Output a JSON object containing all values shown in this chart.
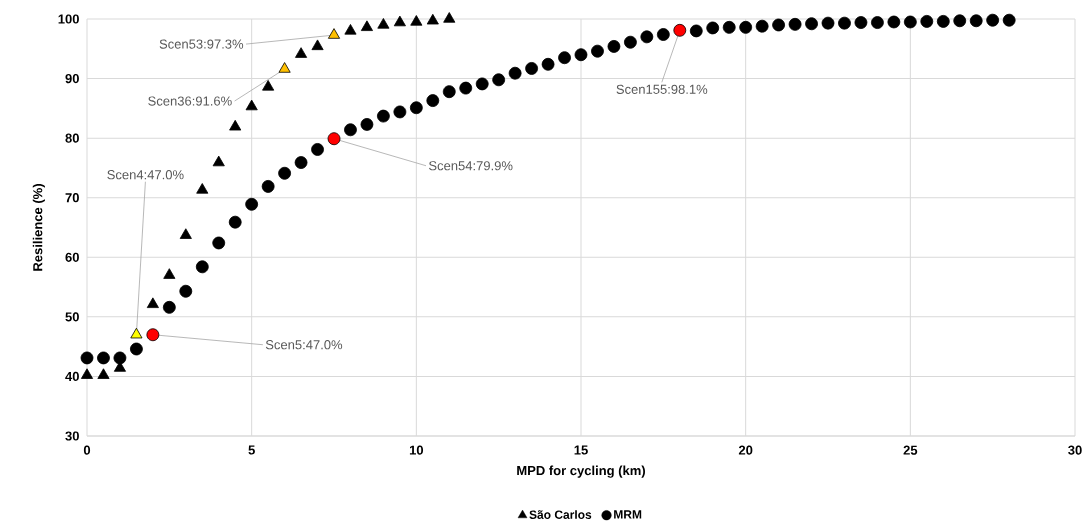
{
  "chart_data": {
    "type": "scatter",
    "xlabel": "MPD for cycling (km)",
    "ylabel": "Resilience (%)",
    "xlim": [
      0,
      30
    ],
    "xticks": [
      0,
      5,
      10,
      15,
      20,
      25,
      30
    ],
    "ylim": [
      30,
      100
    ],
    "yticks": [
      30,
      40,
      50,
      60,
      70,
      80,
      90,
      100
    ],
    "grid": true,
    "legend": "bottom",
    "series": [
      {
        "name": "São Carlos",
        "color": "#000000",
        "marker": "triangle",
        "x": [
          0,
          0.5,
          1,
          1.5,
          2,
          2.5,
          3,
          3.5,
          4,
          4.5,
          5,
          5.5,
          6,
          6.5,
          7,
          7.5,
          8,
          8.5,
          9,
          9.5,
          10,
          10.5,
          11
        ],
        "values": [
          40.2,
          40.2,
          41.4,
          47.0,
          52.1,
          57.0,
          63.7,
          71.3,
          75.9,
          81.9,
          85.3,
          88.6,
          91.6,
          94.1,
          95.4,
          97.3,
          98.0,
          98.6,
          99.0,
          99.4,
          99.5,
          99.7,
          100.0
        ],
        "colors": [
          "#000000",
          "#000000",
          "#000000",
          "#ffff00",
          "#000000",
          "#000000",
          "#000000",
          "#000000",
          "#000000",
          "#000000",
          "#000000",
          "#000000",
          "#ffc000",
          "#000000",
          "#000000",
          "#ffc000",
          "#000000",
          "#000000",
          "#000000",
          "#000000",
          "#000000",
          "#000000",
          "#000000"
        ]
      },
      {
        "name": "MRM",
        "color": "#000000",
        "marker": "circle",
        "x": [
          0,
          0.5,
          1,
          1.5,
          2,
          2.5,
          3,
          3.5,
          4,
          4.5,
          5,
          5.5,
          6,
          6.5,
          7,
          7.5,
          8,
          8.5,
          9,
          9.5,
          10,
          10.5,
          11,
          11.5,
          12,
          12.5,
          13,
          13.5,
          14,
          14.5,
          15,
          15.5,
          16,
          16.5,
          17,
          17.5,
          18,
          18.5,
          19,
          19.5,
          20,
          20.5,
          21,
          21.5,
          22,
          22.5,
          23,
          23.5,
          24,
          24.5,
          25,
          25.5,
          26,
          26.5,
          27,
          27.5,
          28
        ],
        "values": [
          43.1,
          43.1,
          43.1,
          44.6,
          47.0,
          51.6,
          54.3,
          58.4,
          62.4,
          65.9,
          68.9,
          71.9,
          74.1,
          75.9,
          78.1,
          79.9,
          81.4,
          82.3,
          83.7,
          84.4,
          85.1,
          86.3,
          87.8,
          88.4,
          89.1,
          89.8,
          90.9,
          91.7,
          92.4,
          93.5,
          94.0,
          94.6,
          95.4,
          96.1,
          97.0,
          97.4,
          98.1,
          98.0,
          98.5,
          98.6,
          98.6,
          98.8,
          99.0,
          99.1,
          99.2,
          99.3,
          99.3,
          99.4,
          99.4,
          99.5,
          99.5,
          99.6,
          99.6,
          99.7,
          99.7,
          99.8,
          99.8
        ],
        "colors": [
          "#000000",
          "#000000",
          "#000000",
          "#000000",
          "#ff0000",
          "#000000",
          "#000000",
          "#000000",
          "#000000",
          "#000000",
          "#000000",
          "#000000",
          "#000000",
          "#000000",
          "#000000",
          "#ff0000",
          "#000000",
          "#000000",
          "#000000",
          "#000000",
          "#000000",
          "#000000",
          "#000000",
          "#000000",
          "#000000",
          "#000000",
          "#000000",
          "#000000",
          "#000000",
          "#000000",
          "#000000",
          "#000000",
          "#000000",
          "#000000",
          "#000000",
          "#000000",
          "#ff0000",
          "#000000",
          "#000000",
          "#000000",
          "#000000",
          "#000000",
          "#000000",
          "#000000",
          "#000000",
          "#000000",
          "#000000",
          "#000000",
          "#000000",
          "#000000",
          "#000000",
          "#000000",
          "#000000",
          "#000000",
          "#000000",
          "#000000",
          "#000000"
        ]
      }
    ],
    "annotations": [
      {
        "text": "Scen53:97.3%",
        "x": 7.5,
        "y": 97.3
      },
      {
        "text": "Scen36:91.6%",
        "x": 6,
        "y": 91.6
      },
      {
        "text": "Scen4:47.0%",
        "x": 1.5,
        "y": 47.0
      },
      {
        "text": "Scen5:47.0%",
        "x": 2,
        "y": 47.0
      },
      {
        "text": "Scen54:79.9%",
        "x": 7.5,
        "y": 79.9
      },
      {
        "text": "Scen155:98.1%",
        "x": 18,
        "y": 98.1
      }
    ]
  }
}
